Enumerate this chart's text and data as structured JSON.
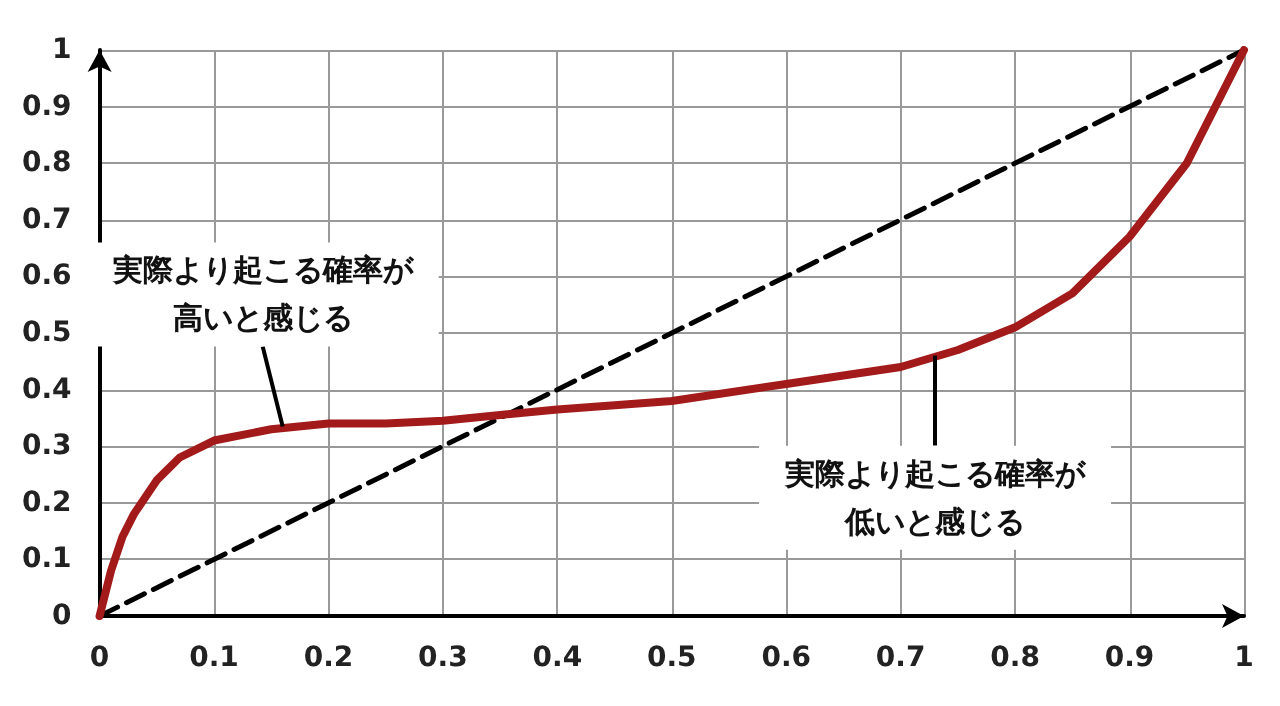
{
  "chart_data": {
    "type": "line",
    "xlim": [
      0,
      1
    ],
    "ylim": [
      0,
      1
    ],
    "xticks": [
      0,
      0.1,
      0.2,
      0.3,
      0.4,
      0.5,
      0.6,
      0.7,
      0.8,
      0.9,
      1
    ],
    "yticks": [
      0,
      0.1,
      0.2,
      0.3,
      0.4,
      0.5,
      0.6,
      0.7,
      0.8,
      0.9,
      1
    ],
    "grid": true,
    "marker": "none",
    "series": [
      {
        "color": "#a31a1a",
        "line_style": "solid",
        "x": [
          0,
          0.01,
          0.02,
          0.03,
          0.05,
          0.07,
          0.1,
          0.15,
          0.2,
          0.25,
          0.3,
          0.35,
          0.4,
          0.5,
          0.6,
          0.7,
          0.75,
          0.8,
          0.85,
          0.9,
          0.95,
          0.98,
          1
        ],
        "values": [
          0,
          0.08,
          0.14,
          0.18,
          0.24,
          0.28,
          0.31,
          0.33,
          0.34,
          0.34,
          0.345,
          0.355,
          0.365,
          0.38,
          0.41,
          0.44,
          0.47,
          0.51,
          0.57,
          0.67,
          0.8,
          0.92,
          1
        ]
      },
      {
        "color": "#000000",
        "line_style": "dashed",
        "x": [
          0,
          1
        ],
        "values": [
          0,
          1
        ]
      }
    ],
    "annotations": [
      {
        "text": "実際より起こる確率が高いと感じる",
        "x": 0.16,
        "y": 0.335
      },
      {
        "text": "実際より起こる確率が低いと感じる",
        "x": 0.73,
        "y": 0.46
      }
    ]
  }
}
